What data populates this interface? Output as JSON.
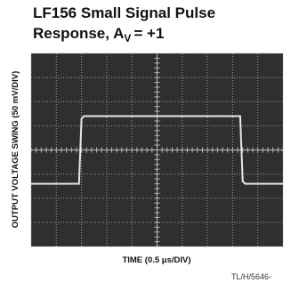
{
  "chart_data": {
    "type": "line",
    "title": "LF156 Small Signal Pulse",
    "subtitle": "Response, A",
    "subtitle_subscript": "V",
    "subtitle_suffix": "= +1",
    "y_label": "OUTPUT VOLTAGE SWING (50 mV/DIV)",
    "x_label": "TIME (0.5 μs/DIV)",
    "footnote": "TL/H/5646-",
    "xlim": [
      0,
      10
    ],
    "ylim": [
      0,
      8
    ],
    "grid": true,
    "color": "#e8e8e8",
    "x": [
      0,
      1.9,
      2.0,
      2.1,
      8.3,
      8.4,
      8.5,
      10
    ],
    "values": [
      2.6,
      2.6,
      5.3,
      5.4,
      5.4,
      2.7,
      2.6,
      2.6
    ]
  }
}
